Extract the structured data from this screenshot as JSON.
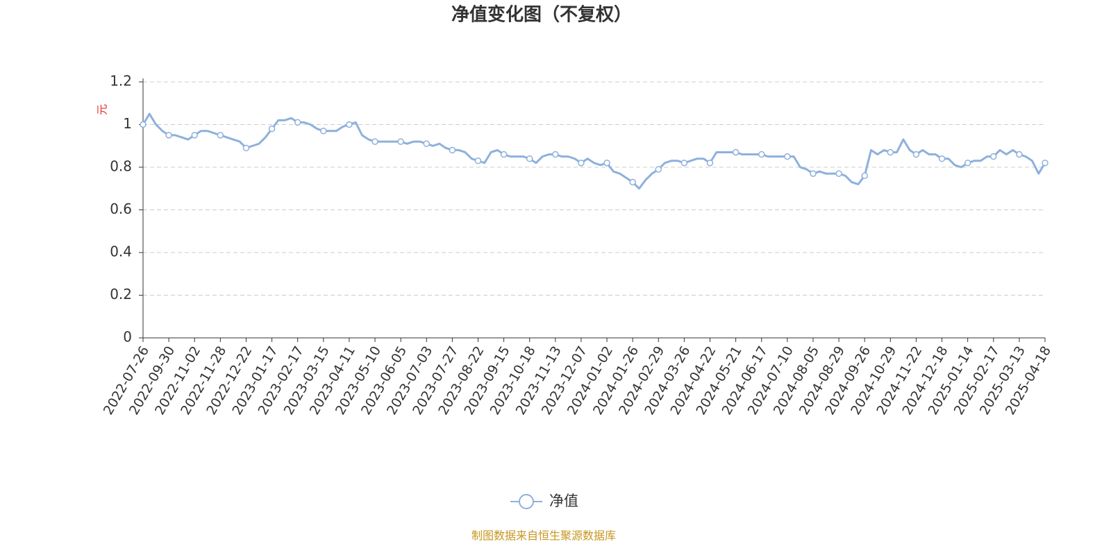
{
  "chart_data": {
    "type": "line",
    "title": "净值变化图（不复权）",
    "y_label": "元",
    "source": "制图数据来自恒生聚源数据库",
    "categories": [
      "2022-07-26",
      null,
      null,
      null,
      "2022-09-30",
      null,
      null,
      null,
      "2022-11-02",
      null,
      null,
      null,
      "2022-11-28",
      null,
      null,
      null,
      "2022-12-22",
      null,
      null,
      null,
      "2023-01-17",
      null,
      null,
      null,
      "2023-02-17",
      null,
      null,
      null,
      "2023-03-15",
      null,
      null,
      null,
      "2023-04-11",
      null,
      null,
      null,
      "2023-05-10",
      null,
      null,
      null,
      "2023-06-05",
      null,
      null,
      null,
      "2023-07-03",
      null,
      null,
      null,
      "2023-07-27",
      null,
      null,
      null,
      "2023-08-22",
      null,
      null,
      null,
      "2023-09-15",
      null,
      null,
      null,
      "2023-10-18",
      null,
      null,
      null,
      "2023-11-13",
      null,
      null,
      null,
      "2023-12-07",
      null,
      null,
      null,
      "2024-01-02",
      null,
      null,
      null,
      "2024-01-26",
      null,
      null,
      null,
      "2024-02-29",
      null,
      null,
      null,
      "2024-03-26",
      null,
      null,
      null,
      "2024-04-22",
      null,
      null,
      null,
      "2024-05-21",
      null,
      null,
      null,
      "2024-06-17",
      null,
      null,
      null,
      "2024-07-10",
      null,
      null,
      null,
      "2024-08-05",
      null,
      null,
      null,
      "2024-08-29",
      null,
      null,
      null,
      "2024-09-26",
      null,
      null,
      null,
      "2024-10-29",
      null,
      null,
      null,
      "2024-11-22",
      null,
      null,
      null,
      "2024-12-18",
      null,
      null,
      null,
      "2025-01-14",
      null,
      null,
      null,
      "2025-02-17",
      null,
      null,
      null,
      "2025-03-13",
      null,
      null,
      null,
      "2025-04-18"
    ],
    "series": [
      {
        "name": "净值",
        "color": "#8eb0dc",
        "values": [
          1.0,
          1.05,
          1.0,
          0.97,
          0.95,
          0.95,
          0.94,
          0.93,
          0.95,
          0.97,
          0.97,
          0.96,
          0.95,
          0.94,
          0.93,
          0.92,
          0.89,
          0.9,
          0.91,
          0.94,
          0.98,
          1.02,
          1.02,
          1.03,
          1.01,
          1.01,
          1.0,
          0.98,
          0.97,
          0.97,
          0.97,
          0.99,
          1.0,
          1.01,
          0.95,
          0.93,
          0.92,
          0.92,
          0.92,
          0.92,
          0.92,
          0.91,
          0.92,
          0.92,
          0.91,
          0.9,
          0.91,
          0.89,
          0.88,
          0.88,
          0.87,
          0.84,
          0.83,
          0.82,
          0.87,
          0.88,
          0.86,
          0.85,
          0.85,
          0.85,
          0.84,
          0.82,
          0.85,
          0.86,
          0.86,
          0.85,
          0.85,
          0.84,
          0.82,
          0.84,
          0.82,
          0.81,
          0.82,
          0.78,
          0.77,
          0.75,
          0.73,
          0.7,
          0.74,
          0.77,
          0.79,
          0.82,
          0.83,
          0.83,
          0.82,
          0.83,
          0.84,
          0.84,
          0.82,
          0.87,
          0.87,
          0.87,
          0.87,
          0.86,
          0.86,
          0.86,
          0.86,
          0.85,
          0.85,
          0.85,
          0.85,
          0.85,
          0.8,
          0.79,
          0.77,
          0.78,
          0.77,
          0.77,
          0.77,
          0.76,
          0.73,
          0.72,
          0.76,
          0.88,
          0.86,
          0.88,
          0.87,
          0.87,
          0.93,
          0.88,
          0.86,
          0.88,
          0.86,
          0.86,
          0.84,
          0.84,
          0.81,
          0.8,
          0.82,
          0.83,
          0.83,
          0.85,
          0.85,
          0.88,
          0.86,
          0.88,
          0.86,
          0.85,
          0.83,
          0.77,
          0.82
        ]
      }
    ],
    "ylim": [
      0,
      1.2
    ],
    "yticks": [
      0,
      0.2,
      0.4,
      0.6,
      0.8,
      1,
      1.2
    ],
    "grid": true
  }
}
